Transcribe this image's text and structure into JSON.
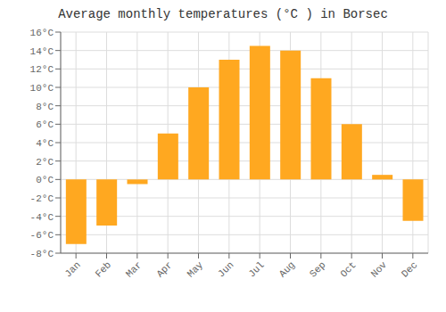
{
  "chart_data": {
    "type": "bar",
    "title": "Average monthly temperatures (°C ) in Borsec",
    "categories": [
      "Jan",
      "Feb",
      "Mar",
      "Apr",
      "May",
      "Jun",
      "Jul",
      "Aug",
      "Sep",
      "Oct",
      "Nov",
      "Dec"
    ],
    "values": [
      -7,
      -5,
      -0.5,
      5,
      10,
      13,
      14.5,
      14,
      11,
      6,
      0.5,
      -4.5
    ],
    "color": "#FFA820",
    "ylim": [
      -8,
      16
    ],
    "yticks": [
      {
        "value": -8,
        "label": "-8°C"
      },
      {
        "value": -6,
        "label": "-6°C"
      },
      {
        "value": -4,
        "label": "-4°C"
      },
      {
        "value": -2,
        "label": "-2°C"
      },
      {
        "value": 0,
        "label": "0°C"
      },
      {
        "value": 2,
        "label": "2°C"
      },
      {
        "value": 4,
        "label": "4°C"
      },
      {
        "value": 6,
        "label": "6°C"
      },
      {
        "value": 8,
        "label": "8°C"
      },
      {
        "value": 10,
        "label": "10°C"
      },
      {
        "value": 12,
        "label": "12°C"
      },
      {
        "value": 14,
        "label": "14°C"
      },
      {
        "value": 16,
        "label": "16°C"
      }
    ],
    "grid": true
  }
}
